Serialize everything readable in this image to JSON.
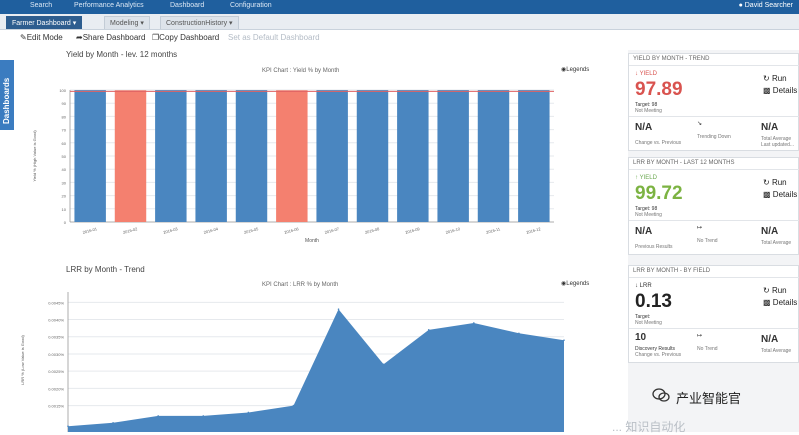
{
  "topnav": {
    "items": [
      "Search",
      "Performance Analytics",
      "Dashboard",
      "Configuration"
    ],
    "user": "David Searcher"
  },
  "tabs": [
    {
      "label": "Farmer Dashboard",
      "active": true
    },
    {
      "label": "Modeling",
      "active": false
    },
    {
      "label": "ConstructionHistory",
      "active": false
    }
  ],
  "toolbar": {
    "edit": "Edit Mode",
    "share": "Share Dashboard",
    "copy": "Copy Dashboard",
    "disabled": "Set as Default Dashboard"
  },
  "sidetab": "Dashboards",
  "yield_panel": {
    "title": "Yield by Month - lev. 12 months",
    "chart_title": "KPI Chart : Yield % by Month",
    "legend_link": "Legends",
    "ylabel": "Yield % (High Value is Good)",
    "xlabel": "Month",
    "y_ticks": [
      "100",
      "90",
      "80",
      "70",
      "60",
      "50",
      "40",
      "30",
      "20",
      "10",
      "0"
    ]
  },
  "lrr_panel": {
    "title": "LRR by Month - Trend",
    "chart_title": "KPI Chart : LRR % by Month",
    "legend_link": "Legends",
    "ylabel": "LRR % (Low Value is Good)",
    "y_ticks": [
      "0.0045%",
      "0.0040%",
      "0.0035%",
      "0.0030%",
      "0.0025%",
      "0.0020%",
      "0.0015%"
    ]
  },
  "chart_data": [
    {
      "type": "bar",
      "title": "KPI Chart : Yield % by Month",
      "xlabel": "Month",
      "ylabel": "Yield % (High Value is Good)",
      "categories": [
        "2016-01",
        "2016-02",
        "2016-03",
        "2016-04",
        "2016-05",
        "2016-06",
        "2016-07",
        "2016-08",
        "2016-09",
        "2016-10",
        "2016-11",
        "2016-12"
      ],
      "values": [
        99.9,
        99.8,
        99.9,
        99.9,
        99.9,
        99.8,
        99.9,
        99.9,
        99.9,
        99.9,
        99.9,
        99.9
      ],
      "below_target": [
        false,
        true,
        false,
        false,
        false,
        true,
        false,
        false,
        false,
        false,
        false,
        false
      ],
      "target": 99,
      "ylim": [
        0,
        100
      ],
      "colors": {
        "ok": "#4a86c0",
        "bad": "#f4806f",
        "target": "#e06262"
      }
    },
    {
      "type": "area",
      "title": "KPI Chart : LRR % by Month",
      "ylabel": "LRR % (Low Value is Good)",
      "x": [
        1,
        2,
        3,
        4,
        5,
        6,
        7,
        8,
        9,
        10,
        11,
        12
      ],
      "values": [
        0.0009,
        0.001,
        0.0012,
        0.0012,
        0.0013,
        0.0015,
        0.0043,
        0.0027,
        0.0037,
        0.0039,
        0.0036,
        0.0034
      ],
      "ylim": [
        0.0005,
        0.0048
      ],
      "color": "#4a86c0"
    }
  ],
  "cards": [
    {
      "head": "YIELD BY MONTH - TREND",
      "kind": "YIELD",
      "kind_color": "#d9534f",
      "value": "97.89",
      "value_color": "#d9534f",
      "target": "Target: 98",
      "note": "Not Meeting",
      "run": "Run",
      "details": "Details",
      "m1": "N/A",
      "m1_note": "Change vs. Previous",
      "m2_note": "Trending Down",
      "m3": "N/A",
      "m3_note": "Total Average",
      "m3_sub": "Last updated..."
    },
    {
      "head": "LRR BY MONTH - LAST 12 MONTHS",
      "kind": "YIELD",
      "kind_color": "#6aa84f",
      "value": "99.72",
      "value_color": "#7cb342",
      "target": "Target: 98",
      "note": "Not Meeting",
      "run": "Run",
      "details": "Details",
      "m1": "N/A",
      "m1_note": "Previous Results",
      "m2_note": "No Trend",
      "m3": "N/A",
      "m3_note": "Total Average",
      "m3_sub": ""
    },
    {
      "head": "LRR BY MONTH - BY FIELD",
      "kind": "LRR",
      "kind_color": "#333333",
      "value": "0.13",
      "value_color": "#222222",
      "target": "Target:",
      "note": "Not Meeting",
      "run": "Run",
      "details": "Details",
      "m1": "10",
      "m1_note": "Discovery Results",
      "m1_sub": "Change vs. Previous",
      "m2_note": "No Trend",
      "m3": "N/A",
      "m3_note": "Total Average",
      "m3_sub": ""
    }
  ],
  "watermark": {
    "text": "产业智能官",
    "faint": "... 知识自动化"
  }
}
